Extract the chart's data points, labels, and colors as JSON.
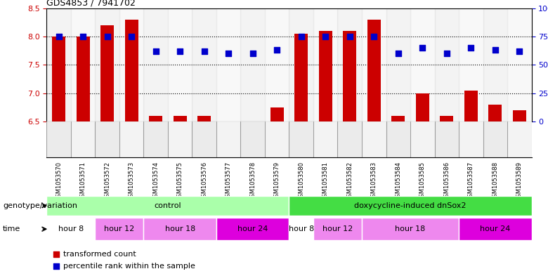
{
  "title": "GDS4853 / 7941702",
  "samples": [
    "GSM1053570",
    "GSM1053571",
    "GSM1053572",
    "GSM1053573",
    "GSM1053574",
    "GSM1053575",
    "GSM1053576",
    "GSM1053577",
    "GSM1053578",
    "GSM1053579",
    "GSM1053580",
    "GSM1053581",
    "GSM1053582",
    "GSM1053583",
    "GSM1053584",
    "GSM1053585",
    "GSM1053586",
    "GSM1053587",
    "GSM1053588",
    "GSM1053589"
  ],
  "red_values": [
    8.0,
    8.0,
    8.2,
    8.3,
    6.6,
    6.6,
    6.6,
    6.5,
    6.5,
    6.75,
    8.05,
    8.1,
    8.1,
    8.3,
    6.6,
    7.0,
    6.6,
    7.05,
    6.8,
    6.7
  ],
  "blue_values": [
    75,
    75,
    75,
    75,
    62,
    62,
    62,
    60,
    60,
    63,
    75,
    75,
    75,
    75,
    60,
    65,
    60,
    65,
    63,
    62
  ],
  "ylim_left": [
    6.5,
    8.5
  ],
  "ylim_right": [
    0,
    100
  ],
  "yticks_left": [
    6.5,
    7.0,
    7.5,
    8.0,
    8.5
  ],
  "yticks_right": [
    0,
    25,
    50,
    75,
    100
  ],
  "grid_values": [
    7.0,
    7.5,
    8.0
  ],
  "bar_color": "#CC0000",
  "dot_color": "#0000CC",
  "bar_bottom": 6.5,
  "genotype_groups": [
    {
      "label": "control",
      "start": 0,
      "end": 9,
      "color": "#AAFFAA"
    },
    {
      "label": "doxycycline-induced dnSox2",
      "start": 10,
      "end": 19,
      "color": "#44DD44"
    }
  ],
  "time_groups": [
    {
      "label": "hour 8",
      "start": 0,
      "end": 1,
      "color": "#FFFFFF"
    },
    {
      "label": "hour 12",
      "start": 2,
      "end": 3,
      "color": "#EE88EE"
    },
    {
      "label": "hour 18",
      "start": 4,
      "end": 6,
      "color": "#EE88EE"
    },
    {
      "label": "hour 24",
      "start": 7,
      "end": 9,
      "color": "#DD00DD"
    },
    {
      "label": "hour 8",
      "start": 10,
      "end": 10,
      "color": "#FFFFFF"
    },
    {
      "label": "hour 12",
      "start": 11,
      "end": 12,
      "color": "#EE88EE"
    },
    {
      "label": "hour 18",
      "start": 13,
      "end": 16,
      "color": "#EE88EE"
    },
    {
      "label": "hour 24",
      "start": 17,
      "end": 19,
      "color": "#DD00DD"
    }
  ],
  "legend_items": [
    {
      "label": "transformed count",
      "color": "#CC0000"
    },
    {
      "label": "percentile rank within the sample",
      "color": "#0000CC"
    }
  ],
  "xlabel_genotype": "genotype/variation",
  "xlabel_time": "time",
  "bar_width": 0.55,
  "dot_size": 28,
  "sample_bg_even": "#D8D8D8",
  "sample_bg_odd": "#E8E8E8"
}
